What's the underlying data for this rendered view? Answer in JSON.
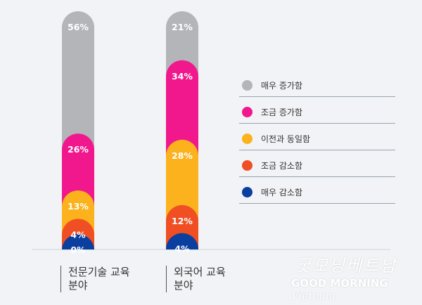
{
  "chart_data": {
    "type": "bar",
    "stacked": true,
    "categories": [
      "전문기술 교육\n분야",
      "외국어 교육\n분야"
    ],
    "series": [
      {
        "name": "매우 증가함",
        "color": "#b3b5b8",
        "values": [
          56,
          21
        ]
      },
      {
        "name": "조금 증가함",
        "color": "#f1178c",
        "values": [
          26,
          34
        ]
      },
      {
        "name": "이전과 동일함",
        "color": "#fbb21d",
        "values": [
          13,
          28
        ]
      },
      {
        "name": "조금 감소함",
        "color": "#f04e23",
        "values": [
          4,
          12
        ]
      },
      {
        "name": "매우 감소함",
        "color": "#0a3fa0",
        "values": [
          0,
          4
        ]
      }
    ],
    "data_labels": [
      [
        "56%",
        "26%",
        "13%",
        "4%",
        "0%"
      ],
      [
        "21%",
        "34%",
        "28%",
        "12%",
        "4%"
      ]
    ],
    "legend_placement": "right"
  },
  "watermark": {
    "script": "굿모닝베트남",
    "brand": "GOOD MORNING",
    "brand_suffix": "Vietnam"
  }
}
